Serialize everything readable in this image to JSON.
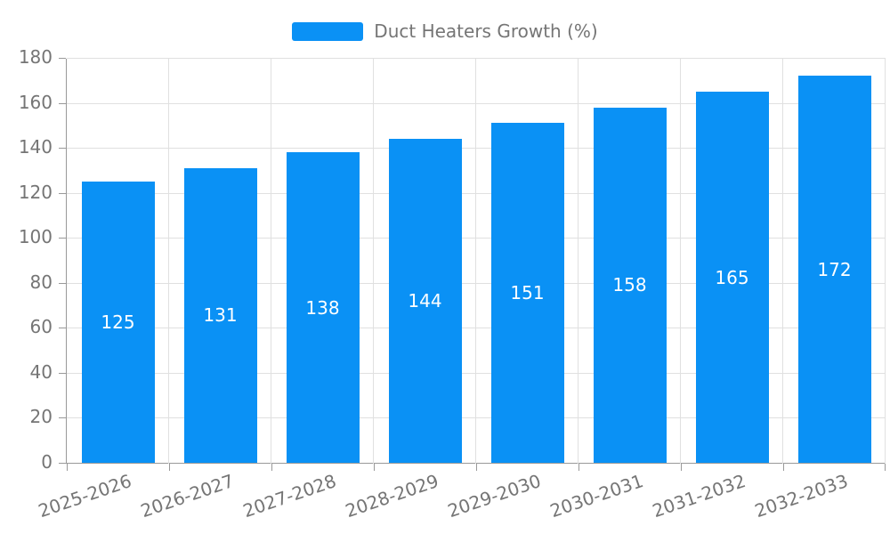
{
  "chart_data": {
    "type": "bar",
    "title": "",
    "legend": {
      "label": "Duct Heaters Growth (%)",
      "position": "top"
    },
    "categories": [
      "2025-2026",
      "2026-2027",
      "2027-2028",
      "2028-2029",
      "2029-2030",
      "2030-2031",
      "2031-2032",
      "2032-2033"
    ],
    "values": [
      125,
      131,
      138,
      144,
      151,
      158,
      165,
      172
    ],
    "xlabel": "",
    "ylabel": "",
    "ylim": [
      0,
      180
    ],
    "ytick_step": 20,
    "yticks": [
      0,
      20,
      40,
      60,
      80,
      100,
      120,
      140,
      160,
      180
    ],
    "grid": true,
    "value_labels": "inside-center",
    "x_label_rotation_deg": -19,
    "colors": {
      "bar": "#0A91F5",
      "grid": "#e0e0e0",
      "axis": "#999999",
      "tick_text": "#757575",
      "legend_text": "#757575",
      "value_text": "#ffffff",
      "background": "#ffffff"
    }
  }
}
